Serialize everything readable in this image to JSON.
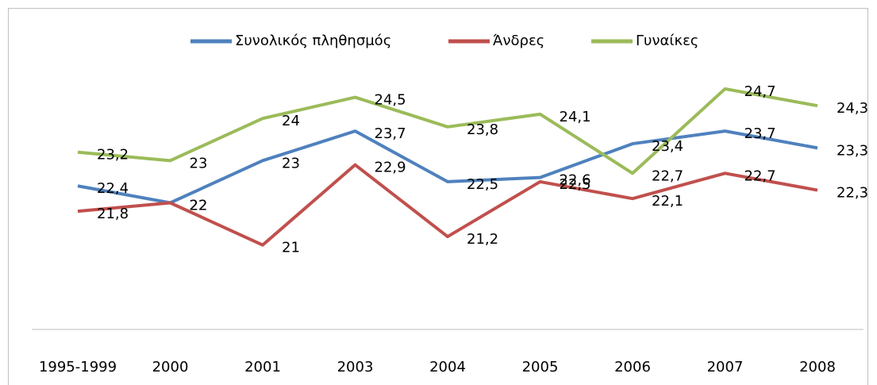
{
  "chart_data": {
    "type": "line",
    "categories": [
      "1995-1999",
      "2000",
      "2001",
      "2003",
      "2004",
      "2005",
      "2006",
      "2007",
      "2008"
    ],
    "series": [
      {
        "name": "Συνολικός πληθησμός",
        "color": "#4f81bd",
        "values": [
          22.4,
          22,
          23,
          23.7,
          22.5,
          22.6,
          23.4,
          23.7,
          23.3
        ],
        "value_labels": [
          "22,4",
          "22",
          "23",
          "23,7",
          "22,5",
          "22,6",
          "23,4",
          "23,7",
          "23,3"
        ]
      },
      {
        "name": "Άνδρες",
        "color": "#c0504d",
        "values": [
          21.8,
          22,
          21,
          22.9,
          21.2,
          22.5,
          22.1,
          22.7,
          22.3
        ],
        "value_labels": [
          "21,8",
          "22",
          "21",
          "22,9",
          "21,2",
          "22,5",
          "22,1",
          "22,7",
          "22,3"
        ]
      },
      {
        "name": "Γυναίκες",
        "color": "#9bbb59",
        "values": [
          23.2,
          23,
          24,
          24.5,
          23.8,
          24.1,
          22.7,
          24.7,
          24.3
        ],
        "value_labels": [
          "23,2",
          "23",
          "24",
          "24,5",
          "23,8",
          "24,1",
          "22,7",
          "24,7",
          "24,3"
        ]
      }
    ],
    "ylim": [
      19,
      25
    ],
    "grid": false,
    "legend": "top"
  }
}
